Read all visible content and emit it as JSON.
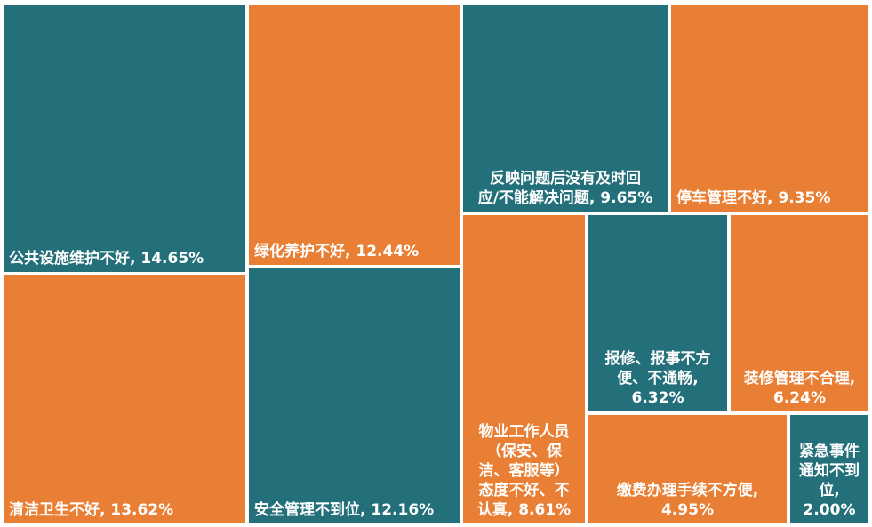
{
  "chart_data": {
    "type": "treemap",
    "colors": {
      "teal": "#23707A",
      "orange": "#E87F35"
    },
    "items": [
      {
        "label": "公共设施维护不好, 14.65%",
        "category": "公共设施维护不好",
        "value": 14.65,
        "color": "teal",
        "align": "left"
      },
      {
        "label": "清洁卫生不好, 13.62%",
        "category": "清洁卫生不好",
        "value": 13.62,
        "color": "orange",
        "align": "left"
      },
      {
        "label": "绿化养护不好, 12.44%",
        "category": "绿化养护不好",
        "value": 12.44,
        "color": "orange",
        "align": "left"
      },
      {
        "label": "安全管理不到位, 12.16%",
        "category": "安全管理不到位",
        "value": 12.16,
        "color": "teal",
        "align": "left"
      },
      {
        "label": "反映问题后没有及时回\n应/不能解决问题, 9.65%",
        "category": "反映问题后没有及时回应/不能解决问题",
        "value": 9.65,
        "color": "teal",
        "align": "center"
      },
      {
        "label": "停车管理不好, 9.35%",
        "category": "停车管理不好",
        "value": 9.35,
        "color": "orange",
        "align": "left"
      },
      {
        "label": "物业工作人员\n（保安、保\n洁、客服等）\n态度不好、不\n认真, 8.61%",
        "category": "物业工作人员（保安、保洁、客服等）态度不好、不认真",
        "value": 8.61,
        "color": "orange",
        "align": "center"
      },
      {
        "label": "报修、报事不方\n便、不通畅,\n6.32%",
        "category": "报修、报事不方便、不通畅",
        "value": 6.32,
        "color": "teal",
        "align": "center"
      },
      {
        "label": "装修管理不合理,\n6.24%",
        "category": "装修管理不合理",
        "value": 6.24,
        "color": "orange",
        "align": "center"
      },
      {
        "label": "缴费办理手续不方便,\n4.95%",
        "category": "缴费办理手续不方便",
        "value": 4.95,
        "color": "orange",
        "align": "center"
      },
      {
        "label": "紧急事件\n通知不到\n位, 2.00%",
        "category": "紧急事件通知不到位",
        "value": 2.0,
        "color": "teal",
        "align": "center"
      }
    ]
  }
}
